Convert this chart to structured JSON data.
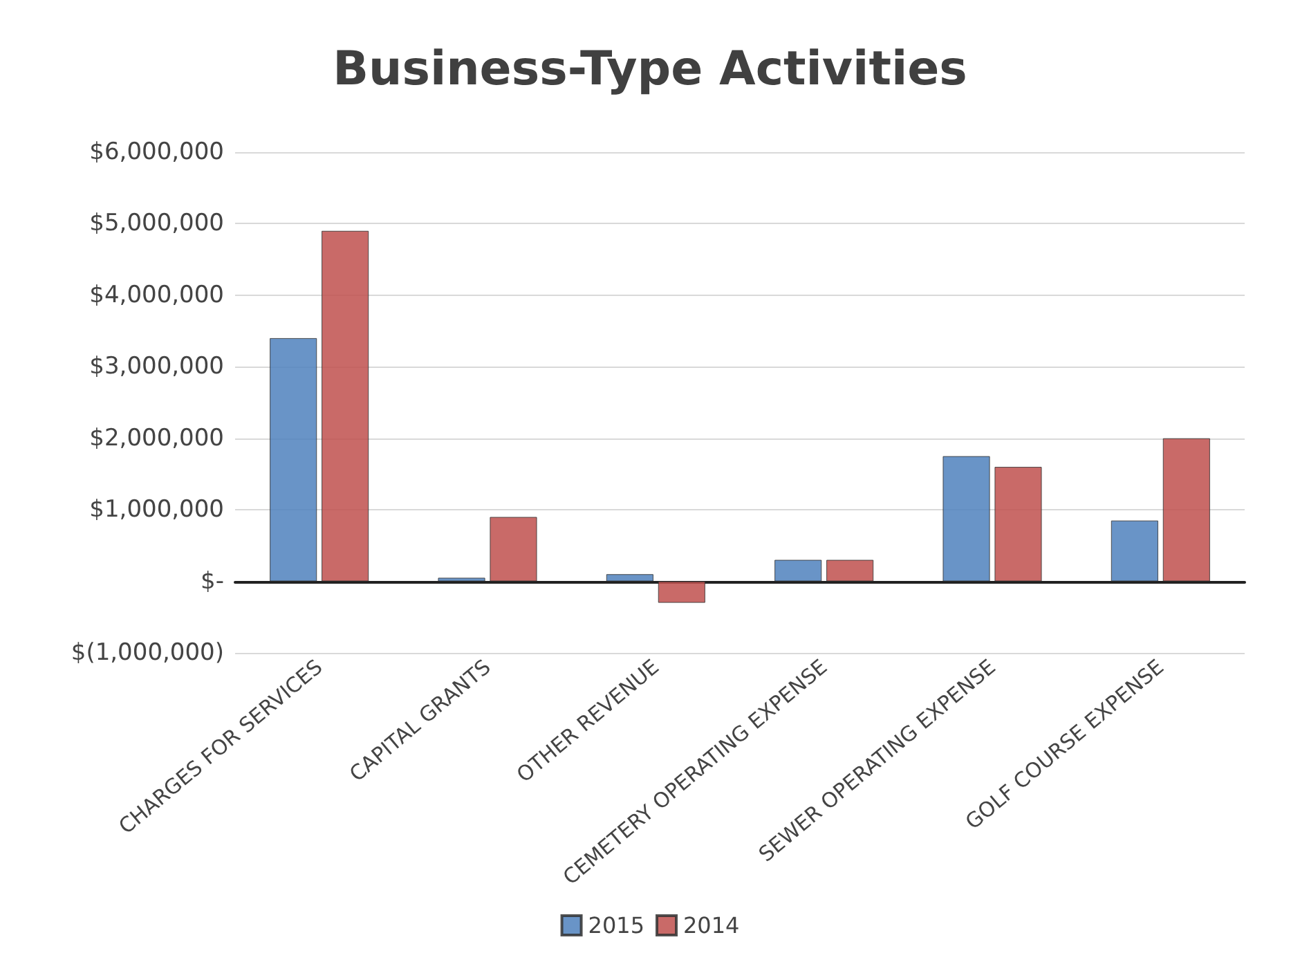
{
  "chart_data": {
    "type": "bar",
    "title": "Business-Type Activities",
    "categories": [
      "CHARGES FOR SERVICES",
      "CAPITAL GRANTS",
      "OTHER REVENUE",
      "CEMETERY OPERATING EXPENSE",
      "SEWER OPERATING EXPENSE",
      "GOLF COURSE EXPENSE"
    ],
    "series": [
      {
        "name": "2015",
        "color": "#4f81bd",
        "values": [
          3400000,
          50000,
          100000,
          300000,
          1750000,
          850000
        ]
      },
      {
        "name": "2014",
        "color": "#c0504d",
        "values": [
          4900000,
          900000,
          -300000,
          300000,
          1600000,
          2000000
        ]
      }
    ],
    "ylim": [
      -1000000,
      6000000
    ],
    "yticks": [
      {
        "value": -1000000,
        "label": "$(1,000,000)"
      },
      {
        "value": 0,
        "label": "$-"
      },
      {
        "value": 1000000,
        "label": "$1,000,000"
      },
      {
        "value": 2000000,
        "label": "$2,000,000"
      },
      {
        "value": 3000000,
        "label": "$3,000,000"
      },
      {
        "value": 4000000,
        "label": "$4,000,000"
      },
      {
        "value": 5000000,
        "label": "$5,000,000"
      },
      {
        "value": 6000000,
        "label": "$6,000,000"
      }
    ],
    "grid": "y",
    "legend": "bottom"
  }
}
